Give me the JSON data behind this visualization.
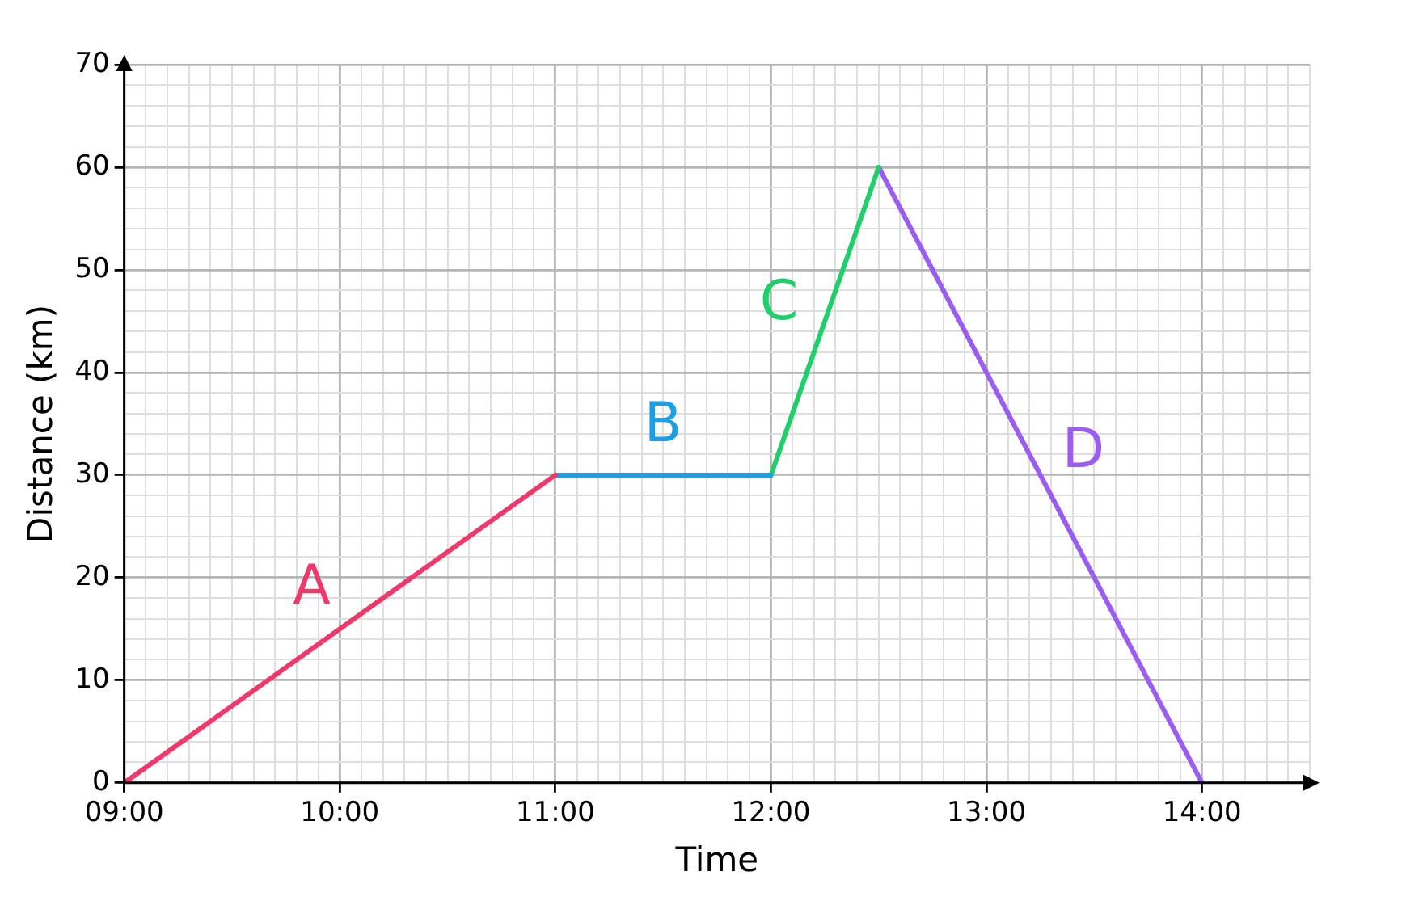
{
  "chart_data": {
    "type": "line",
    "xlabel": "Time",
    "ylabel": "Distance (km)",
    "xlim": [
      9,
      14.5
    ],
    "ylim": [
      0,
      70
    ],
    "xticks": [
      {
        "value": 9,
        "label": "09:00"
      },
      {
        "value": 9.1,
        "label": null
      },
      {
        "value": 9.2,
        "label": null
      },
      {
        "value": 9.3,
        "label": null
      },
      {
        "value": 9.4,
        "label": null
      },
      {
        "value": 9.5,
        "label": null
      },
      {
        "value": 9.6,
        "label": null
      },
      {
        "value": 9.7,
        "label": null
      },
      {
        "value": 9.8,
        "label": null
      },
      {
        "value": 9.9,
        "label": null
      },
      {
        "value": 10,
        "label": "10:00"
      },
      {
        "value": 10.1,
        "label": null
      },
      {
        "value": 10.2,
        "label": null
      },
      {
        "value": 10.3,
        "label": null
      },
      {
        "value": 10.4,
        "label": null
      },
      {
        "value": 10.5,
        "label": null
      },
      {
        "value": 10.6,
        "label": null
      },
      {
        "value": 10.7,
        "label": null
      },
      {
        "value": 10.8,
        "label": null
      },
      {
        "value": 10.9,
        "label": null
      },
      {
        "value": 11,
        "label": "11:00"
      },
      {
        "value": 11.1,
        "label": null
      },
      {
        "value": 11.2,
        "label": null
      },
      {
        "value": 11.3,
        "label": null
      },
      {
        "value": 11.4,
        "label": null
      },
      {
        "value": 11.5,
        "label": null
      },
      {
        "value": 11.6,
        "label": null
      },
      {
        "value": 11.7,
        "label": null
      },
      {
        "value": 11.8,
        "label": null
      },
      {
        "value": 11.9,
        "label": null
      },
      {
        "value": 12,
        "label": "12:00"
      },
      {
        "value": 12.1,
        "label": null
      },
      {
        "value": 12.2,
        "label": null
      },
      {
        "value": 12.3,
        "label": null
      },
      {
        "value": 12.4,
        "label": null
      },
      {
        "value": 12.5,
        "label": null
      },
      {
        "value": 12.6,
        "label": null
      },
      {
        "value": 12.7,
        "label": null
      },
      {
        "value": 12.8,
        "label": null
      },
      {
        "value": 12.9,
        "label": null
      },
      {
        "value": 13,
        "label": "13:00"
      },
      {
        "value": 13.1,
        "label": null
      },
      {
        "value": 13.2,
        "label": null
      },
      {
        "value": 13.3,
        "label": null
      },
      {
        "value": 13.4,
        "label": null
      },
      {
        "value": 13.5,
        "label": null
      },
      {
        "value": 13.6,
        "label": null
      },
      {
        "value": 13.7,
        "label": null
      },
      {
        "value": 13.8,
        "label": null
      },
      {
        "value": 13.9,
        "label": null
      },
      {
        "value": 14,
        "label": "14:00"
      },
      {
        "value": 14.1,
        "label": null
      },
      {
        "value": 14.2,
        "label": null
      },
      {
        "value": 14.3,
        "label": null
      },
      {
        "value": 14.4,
        "label": null
      },
      {
        "value": 14.5,
        "label": null
      }
    ],
    "yticks": [
      0,
      {
        "value": 2,
        "label": null
      },
      {
        "value": 4,
        "label": null
      },
      {
        "value": 6,
        "label": null
      },
      {
        "value": 8,
        "label": null
      },
      10,
      {
        "value": 12,
        "label": null
      },
      {
        "value": 14,
        "label": null
      },
      {
        "value": 16,
        "label": null
      },
      {
        "value": 18,
        "label": null
      },
      20,
      {
        "value": 22,
        "label": null
      },
      {
        "value": 24,
        "label": null
      },
      {
        "value": 26,
        "label": null
      },
      {
        "value": 28,
        "label": null
      },
      30,
      {
        "value": 32,
        "label": null
      },
      {
        "value": 34,
        "label": null
      },
      {
        "value": 36,
        "label": null
      },
      {
        "value": 38,
        "label": null
      },
      40,
      {
        "value": 42,
        "label": null
      },
      {
        "value": 44,
        "label": null
      },
      {
        "value": 46,
        "label": null
      },
      {
        "value": 48,
        "label": null
      },
      50,
      {
        "value": 52,
        "label": null
      },
      {
        "value": 54,
        "label": null
      },
      {
        "value": 56,
        "label": null
      },
      {
        "value": 58,
        "label": null
      },
      60,
      {
        "value": 62,
        "label": null
      },
      {
        "value": 64,
        "label": null
      },
      {
        "value": 66,
        "label": null
      },
      {
        "value": 68,
        "label": null
      },
      70
    ],
    "grid": true,
    "legend": false,
    "marker": "none",
    "line_style": "solid",
    "series": [
      {
        "name": "A",
        "color": "#f0386b",
        "x": [
          9,
          11
        ],
        "values": [
          0,
          30
        ]
      },
      {
        "name": "B",
        "color": "#1aa0e8",
        "x": [
          11,
          12
        ],
        "values": [
          30,
          30
        ]
      },
      {
        "name": "C",
        "color": "#1fcf6a",
        "x": [
          12,
          12.5
        ],
        "values": [
          30,
          60
        ]
      },
      {
        "name": "D",
        "color": "#9b5cf2",
        "x": [
          12.5,
          14
        ],
        "values": [
          60,
          0
        ]
      }
    ]
  }
}
